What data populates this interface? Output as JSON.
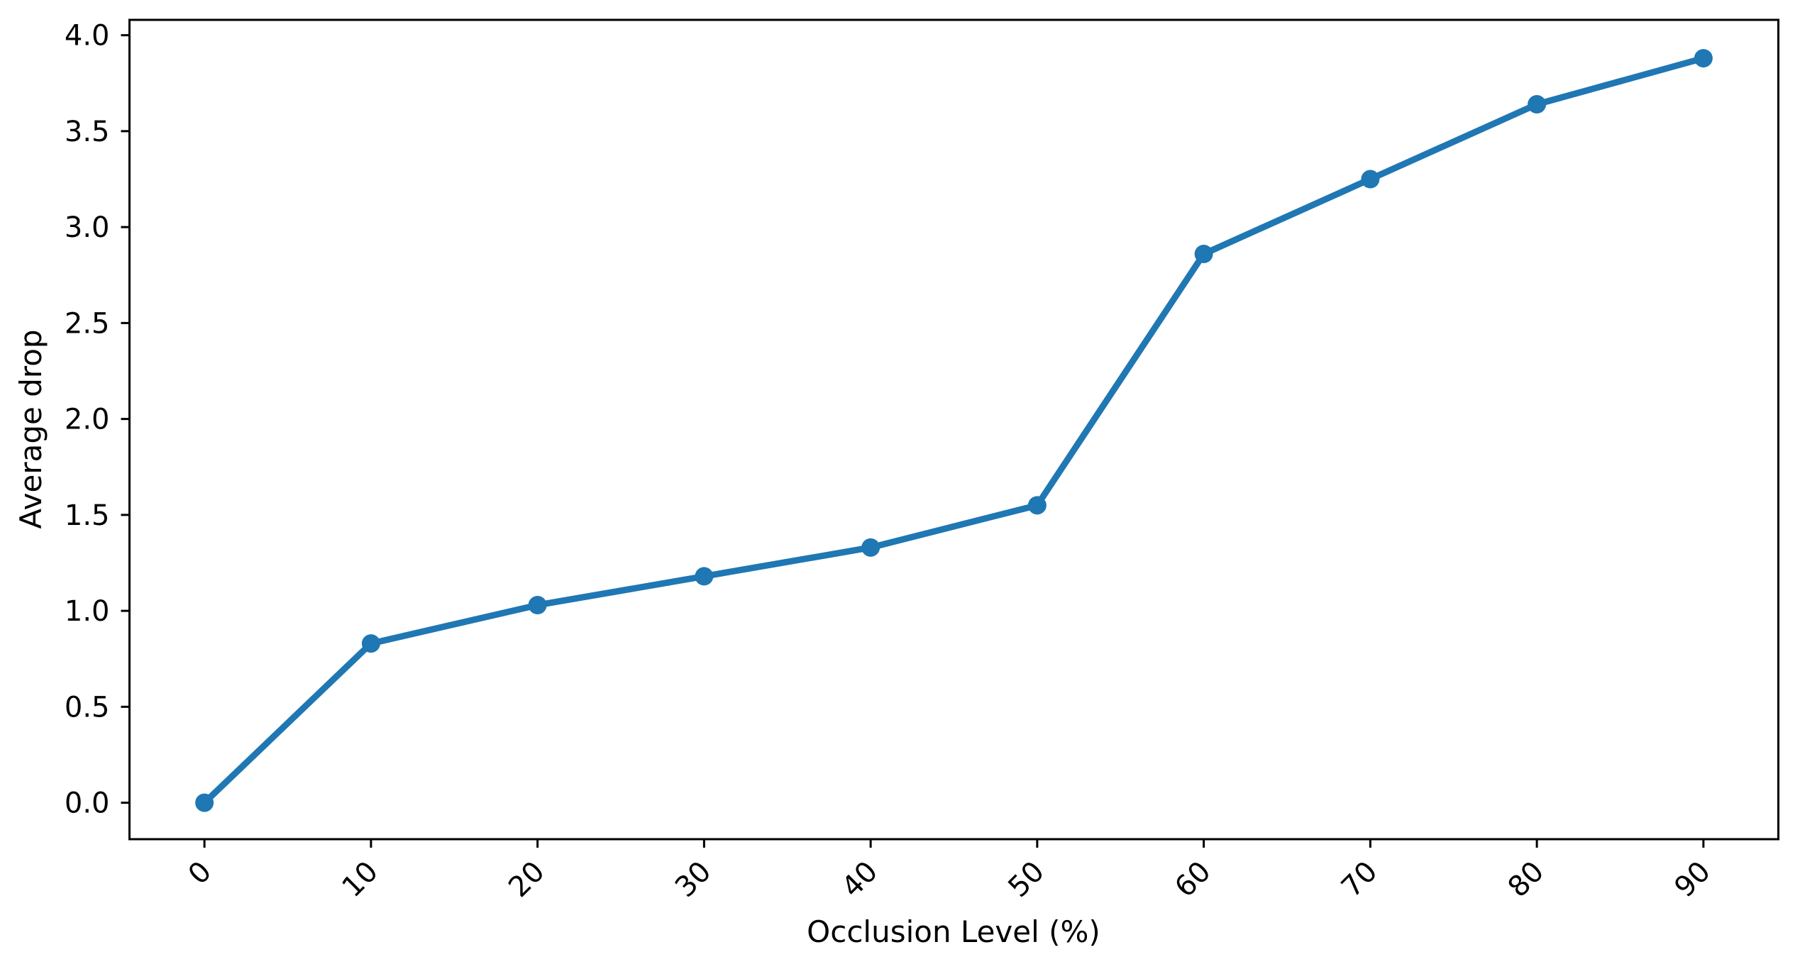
{
  "page": {
    "background": "#ffffff"
  },
  "chart_data": {
    "type": "line",
    "title": "",
    "xlabel": "Occlusion Level (%)",
    "ylabel": "Average drop",
    "x": [
      0,
      10,
      20,
      30,
      40,
      50,
      60,
      70,
      80,
      90
    ],
    "series": [
      {
        "name": "Average drop",
        "values": [
          0.0,
          0.83,
          1.03,
          1.18,
          1.33,
          1.55,
          2.86,
          3.25,
          3.64,
          3.88
        ]
      }
    ],
    "xlim": [
      -4.5,
      94.5
    ],
    "ylim": [
      -0.19,
      4.08
    ],
    "xticks": {
      "values": [
        0,
        10,
        20,
        30,
        40,
        50,
        60,
        70,
        80,
        90
      ],
      "labels": [
        "0",
        "10",
        "20",
        "30",
        "40",
        "50",
        "60",
        "70",
        "80",
        "90"
      ],
      "rotation_deg": 45
    },
    "yticks": {
      "values": [
        0.0,
        0.5,
        1.0,
        1.5,
        2.0,
        2.5,
        3.0,
        3.5,
        4.0
      ],
      "labels": [
        "0.0",
        "0.5",
        "1.0",
        "1.5",
        "2.0",
        "2.5",
        "3.0",
        "3.5",
        "4.0"
      ]
    },
    "grid": false,
    "legend": null,
    "colors": {
      "line": "#1f77b4",
      "marker": "#1f77b4",
      "axis": "#000000",
      "background": "#ffffff"
    },
    "style": {
      "marker_shape": "circle",
      "marker_radius": 13,
      "line_width": 9,
      "spine_width": 3,
      "tick_length": 12
    }
  }
}
